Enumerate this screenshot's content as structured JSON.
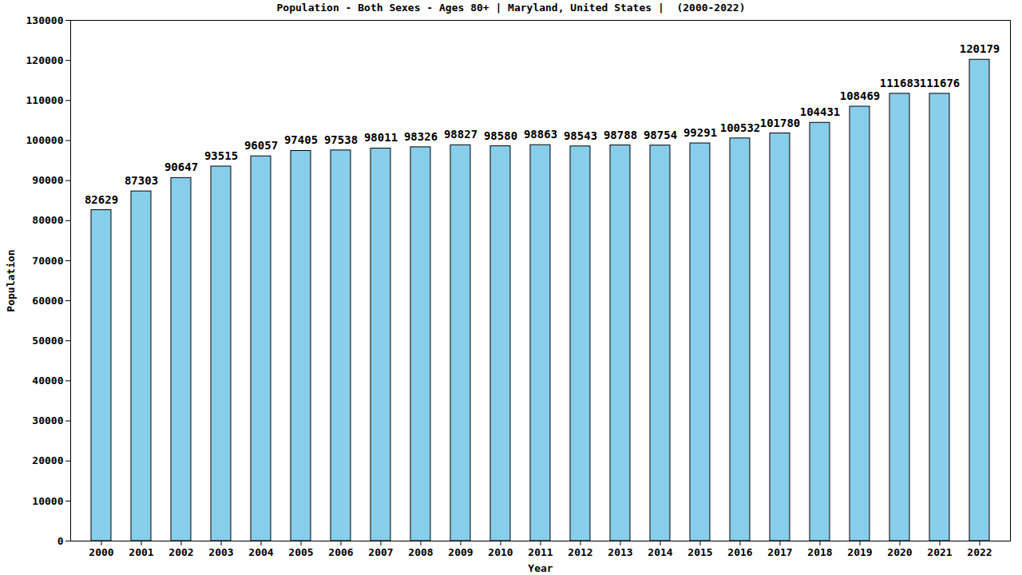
{
  "chart_data": {
    "type": "bar",
    "title": "Population - Both Sexes - Ages 80+ | Maryland, United States |  (2000-2022)",
    "x_label": "Year",
    "y_label": "Population",
    "categories": [
      "2000",
      "2001",
      "2002",
      "2003",
      "2004",
      "2005",
      "2006",
      "2007",
      "2008",
      "2009",
      "2010",
      "2011",
      "2012",
      "2013",
      "2014",
      "2015",
      "2016",
      "2017",
      "2018",
      "2019",
      "2020",
      "2021",
      "2022"
    ],
    "values": [
      82629,
      87303,
      90647,
      93515,
      96057,
      97405,
      97538,
      98011,
      98326,
      98827,
      98580,
      98863,
      98543,
      98788,
      98754,
      99291,
      100532,
      101780,
      104431,
      108469,
      111683,
      111676,
      120179
    ],
    "color": "#87ceeb",
    "ylim": [
      0,
      130000
    ],
    "yticks": [
      0,
      10000,
      20000,
      30000,
      40000,
      50000,
      60000,
      70000,
      80000,
      90000,
      100000,
      110000,
      120000,
      130000
    ],
    "grid": false,
    "data_labels": true
  }
}
